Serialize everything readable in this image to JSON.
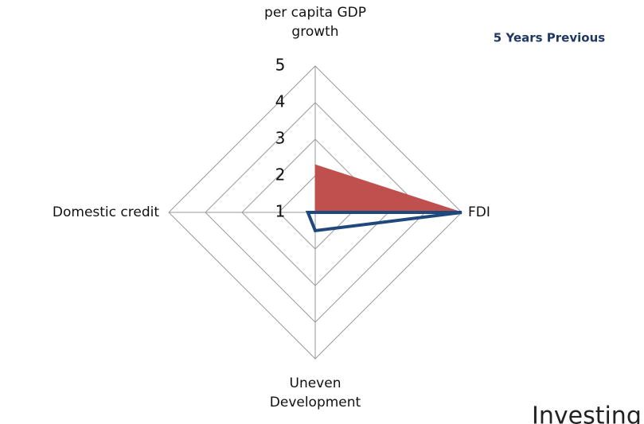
{
  "chart_data": {
    "type": "radar",
    "title": "5 Years Previous",
    "categories": [
      "per capita GDP growth",
      "FDI",
      "Uneven Development",
      "Domestic credit"
    ],
    "series": [
      {
        "color": "#c0504d",
        "fill": true,
        "values": [
          2.3,
          5,
          1,
          1
        ]
      },
      {
        "color": "#1f497d",
        "fill": false,
        "values": [
          1,
          5,
          1.5,
          1.2
        ]
      }
    ],
    "ylim": [
      1,
      5
    ],
    "yticks": [
      1,
      2,
      3,
      4,
      5
    ],
    "grid": true
  },
  "footer_text": "Investing"
}
